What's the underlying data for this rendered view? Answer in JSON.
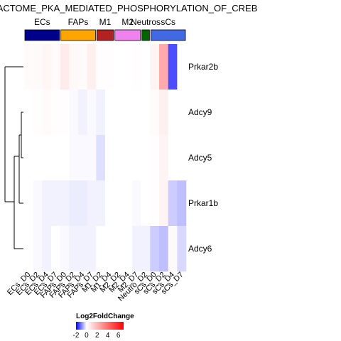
{
  "chart_data": {
    "type": "heatmap",
    "title": "REACTOME_PKA_MEDIATED_PHOSPHORYLATION_OF_CREB",
    "rows": [
      "Prkar2b",
      "Adcy9",
      "Adcy5",
      "Prkar1b",
      "Adcy6"
    ],
    "columns": [
      "ECs_D0",
      "ECs_D2",
      "ECs_D4",
      "ECs_D7",
      "FAPs_D0",
      "FAPs_D2",
      "FAPs_D4",
      "FAPs_D7",
      "M1_D2",
      "M1_D4",
      "M2_D2",
      "M2_D4",
      "M2_D7",
      "Neutro_D2",
      "sCs_D0",
      "sCs_D2",
      "sCs_D4",
      "sCs_D7"
    ],
    "values": [
      [
        0.1,
        0.15,
        0.25,
        0.1,
        0.55,
        0.2,
        0.1,
        0.45,
        0.05,
        0.05,
        0.0,
        0.0,
        0.05,
        0.0,
        0.3,
        2.3,
        -1.4,
        0.0
      ],
      [
        0.0,
        0.05,
        0.1,
        0.05,
        0.05,
        -0.05,
        -0.1,
        -0.05,
        -0.1,
        0.0,
        0.0,
        0.0,
        0.0,
        0.0,
        0.1,
        0.4,
        0.0,
        0.0
      ],
      [
        0.0,
        0.0,
        0.0,
        0.0,
        0.0,
        -0.05,
        -0.05,
        -0.05,
        -0.25,
        0.0,
        0.0,
        0.0,
        0.0,
        0.0,
        0.05,
        0.3,
        0.0,
        0.0
      ],
      [
        0.0,
        -0.05,
        -0.1,
        -0.1,
        -0.1,
        -0.15,
        -0.15,
        -0.1,
        -0.1,
        0.0,
        0.0,
        0.0,
        -0.05,
        0.0,
        0.05,
        0.3,
        -0.4,
        -0.5
      ],
      [
        0.0,
        -0.05,
        -0.1,
        0.0,
        -0.05,
        -0.1,
        -0.1,
        -0.1,
        0.0,
        0.0,
        0.0,
        0.0,
        -0.1,
        -0.1,
        -0.4,
        -0.5,
        0.15,
        -0.3
      ]
    ],
    "column_groups": [
      {
        "name": "ECs",
        "color": "#00008B",
        "start": 0,
        "end": 3
      },
      {
        "name": "FAPs",
        "color": "#FFA500",
        "start": 4,
        "end": 7
      },
      {
        "name": "M1",
        "color": "#B22222",
        "start": 8,
        "end": 9
      },
      {
        "name": "M2",
        "color": "#EE82EE",
        "start": 10,
        "end": 12
      },
      {
        "name": "Neutros",
        "color": "#006400",
        "start": 13,
        "end": 13
      },
      {
        "name": "sCs",
        "color": "#4169E1",
        "start": 14,
        "end": 17
      }
    ],
    "colorbar": {
      "title": "Log2FoldChange",
      "ticks": [
        "-2",
        "0",
        "2",
        "4",
        "6"
      ],
      "min": -2,
      "max": 7,
      "colors": {
        "low": "#0000FF",
        "mid": "#FFFFFF",
        "high": "#FF0000"
      }
    },
    "row_dendrogram": true
  }
}
